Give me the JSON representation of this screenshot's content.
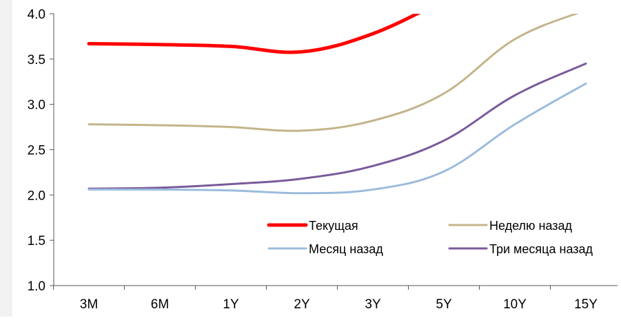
{
  "chart_data": {
    "type": "line",
    "categories": [
      "3M",
      "6M",
      "1Y",
      "2Y",
      "3Y",
      "5Y",
      "10Y",
      "15Y"
    ],
    "ylim": [
      1.0,
      4.0
    ],
    "yticks": [
      "1.0",
      "1.5",
      "2.0",
      "2.5",
      "3.0",
      "3.5",
      "4.0"
    ],
    "grid": false,
    "legend_position": "bottom-right",
    "series": [
      {
        "name": "Текущая",
        "color": "#ff0000",
        "values": [
          3.67,
          3.66,
          3.64,
          3.58,
          3.78,
          4.15,
          null,
          null
        ]
      },
      {
        "name": "Неделю назад",
        "color": "#c4b48a",
        "values": [
          2.78,
          2.77,
          2.75,
          2.71,
          2.82,
          3.12,
          3.72,
          4.04
        ]
      },
      {
        "name": "Месяц назад",
        "color": "#9bbbdc",
        "values": [
          2.06,
          2.06,
          2.05,
          2.02,
          2.06,
          2.26,
          2.78,
          3.23
        ]
      },
      {
        "name": "Три месяца назад",
        "color": "#7a5a9a",
        "values": [
          2.07,
          2.08,
          2.12,
          2.18,
          2.32,
          2.6,
          3.1,
          3.45
        ]
      }
    ]
  }
}
